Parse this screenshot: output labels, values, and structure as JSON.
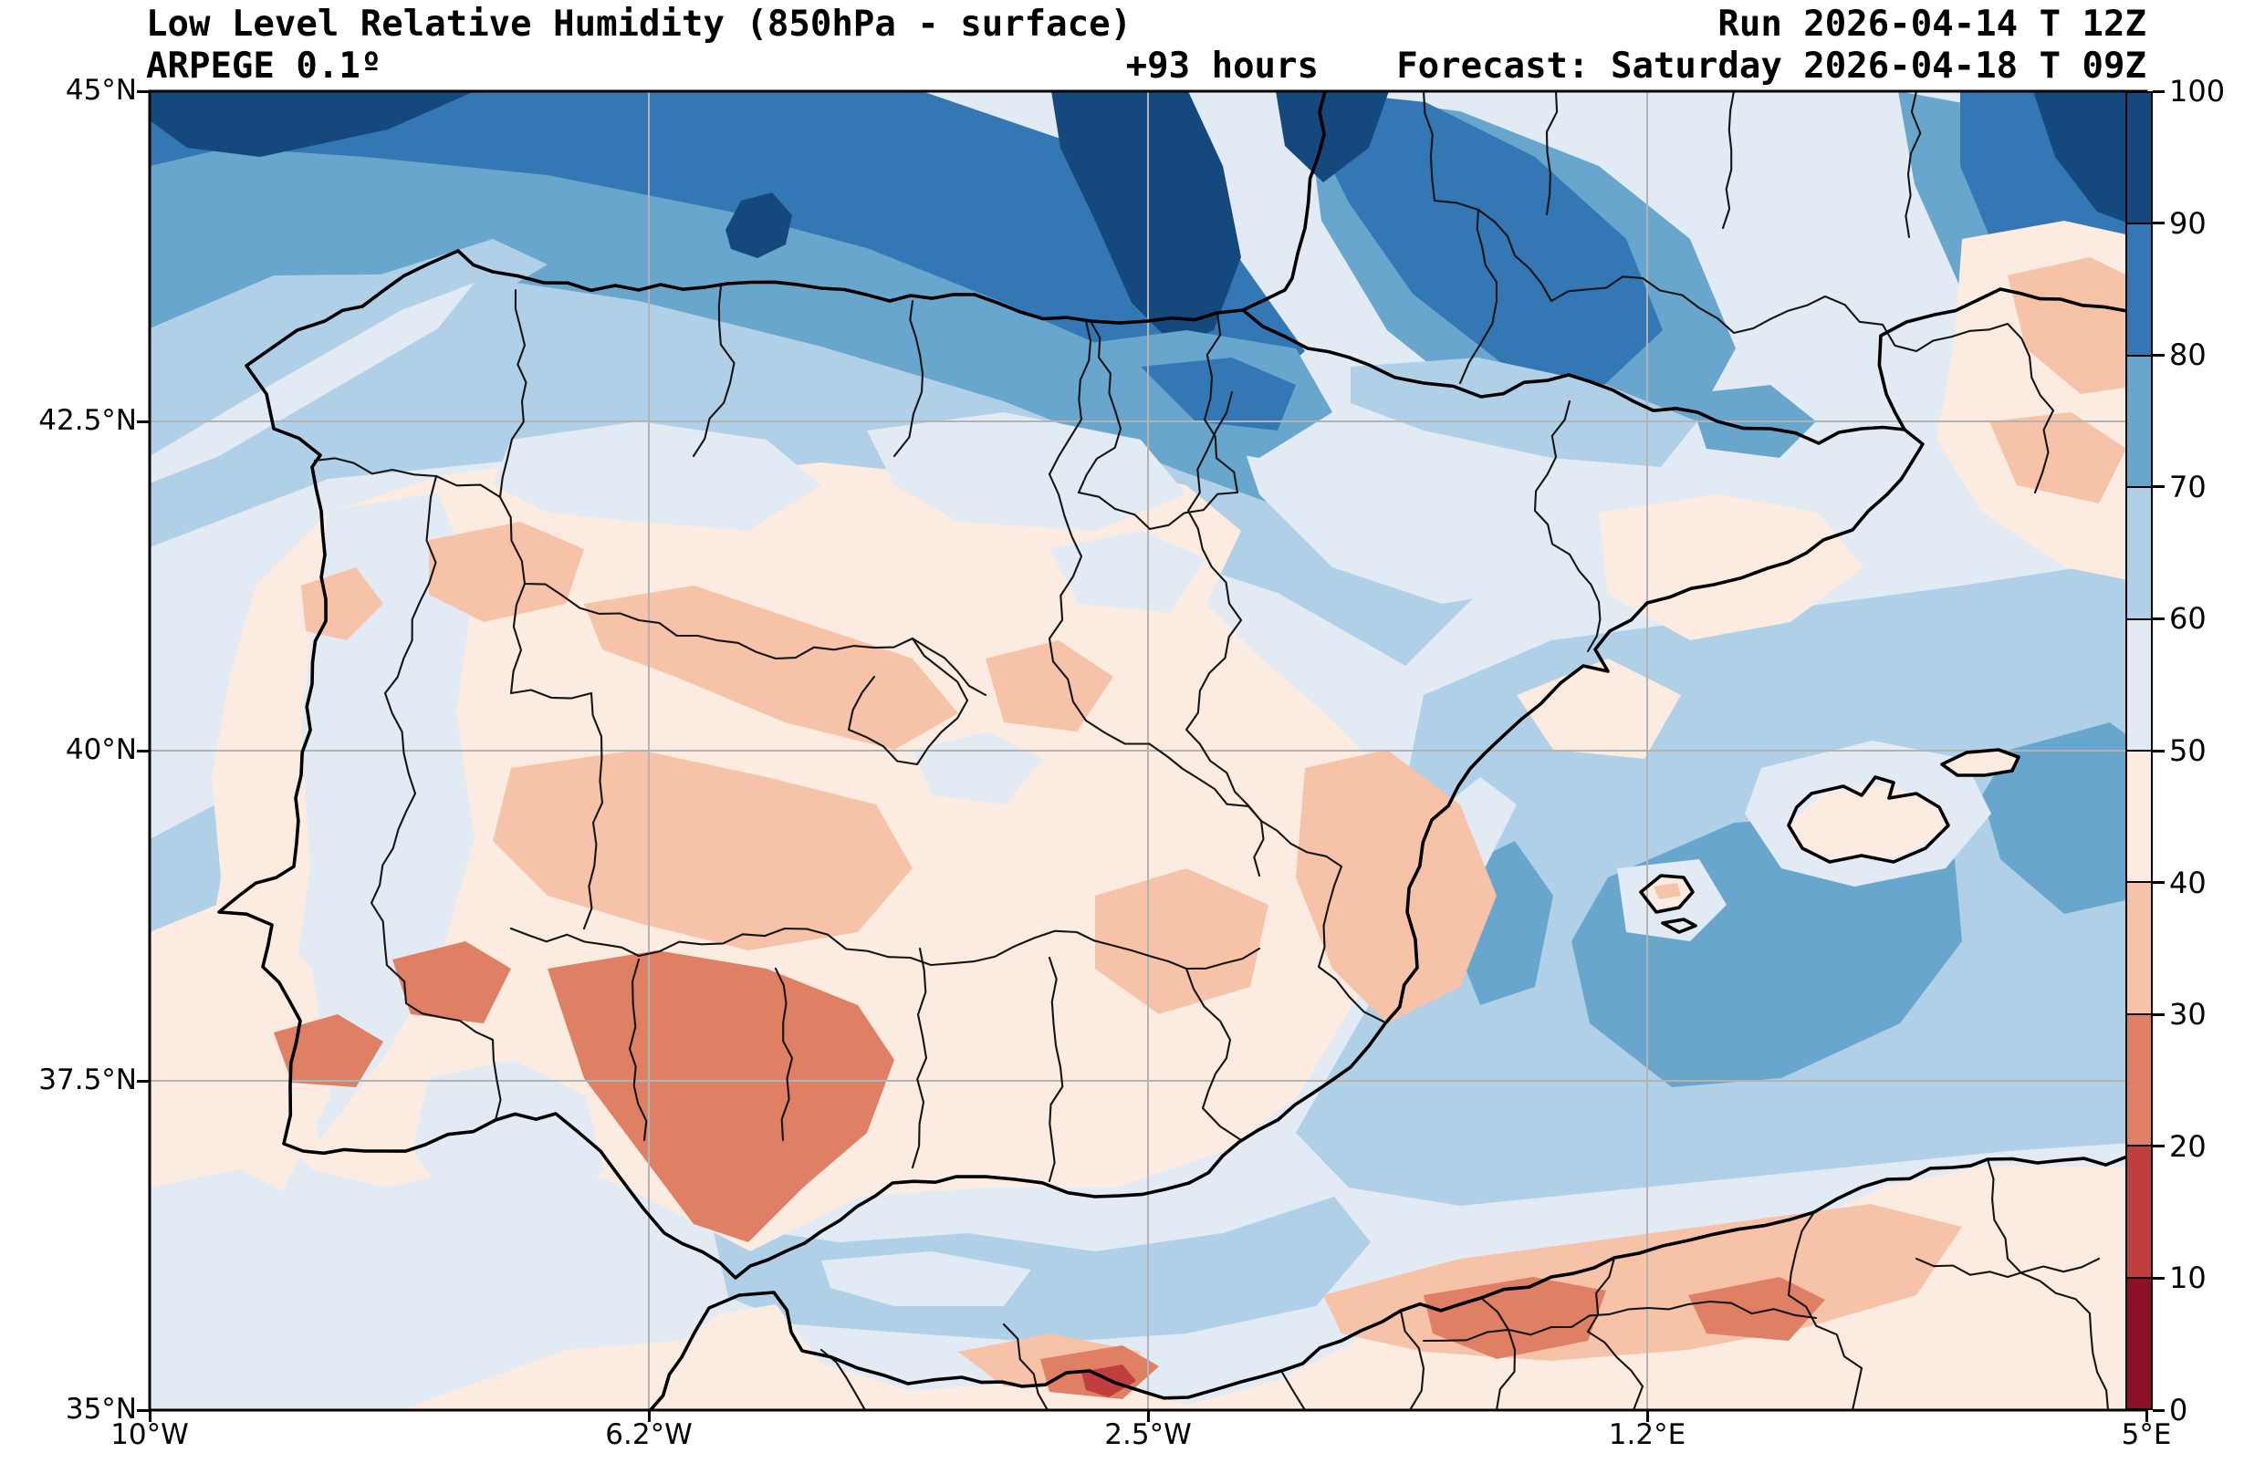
{
  "header": {
    "title": "Low Level Relative Humidity (850hPa - surface)",
    "model": "ARPEGE 0.1º",
    "lead_time": "+93 hours",
    "run": "Run 2026-04-14 T 12Z",
    "forecast": "Forecast: Saturday 2026-04-18 T 09Z"
  },
  "axes": {
    "x_ticks": [
      "10°W",
      "6.2°W",
      "2.5°W",
      "1.2°E",
      "5°E"
    ],
    "y_ticks": [
      "45°N",
      "42.5°N",
      "40°N",
      "37.5°N",
      "35°N"
    ]
  },
  "colorbar": {
    "tick_labels": [
      "100",
      "90",
      "80",
      "70",
      "60",
      "50",
      "40",
      "30",
      "20",
      "10",
      "0"
    ],
    "colors": [
      "#15497e",
      "#3377b4",
      "#68a6ce",
      "#b0d0e7",
      "#e2ebf3",
      "#fcebe1",
      "#f6c3a8",
      "#df7f63",
      "#c03e3e",
      "#8c1127"
    ],
    "grid_color": "#b3b3b3",
    "coast_color": "#000000"
  },
  "chart_data": {
    "type": "filled_contour_map",
    "title": "Low Level Relative Humidity (850hPa - surface)",
    "variable": "relative humidity (%)",
    "model": "ARPEGE 0.1º",
    "run": "2026-04-14 12Z",
    "valid": "Saturday 2026-04-18 09Z",
    "lead_hours": 93,
    "extent": {
      "lon_min": -10,
      "lon_max": 5,
      "lat_min": 35,
      "lat_max": 45
    },
    "x_tick_lons": [
      -10,
      -6.2,
      -2.5,
      1.2,
      5
    ],
    "y_tick_lats": [
      45,
      42.5,
      40,
      37.5,
      35
    ],
    "levels_pct": [
      0,
      10,
      20,
      30,
      40,
      50,
      60,
      70,
      80,
      90,
      100
    ],
    "palette_low_to_high": [
      "#8c1127",
      "#c03e3e",
      "#df7f63",
      "#f6c3a8",
      "#fcebe1",
      "#e2ebf3",
      "#b0d0e7",
      "#68a6ce",
      "#3377b4",
      "#15497e"
    ],
    "legend_position": "right",
    "gridlines": true,
    "regions": [
      {
        "area": "Bay of Biscay / offshore band along top",
        "rh_pct": "80-100"
      },
      {
        "area": "Dark maxima top-centre and top-right corner",
        "rh_pct": "90-100"
      },
      {
        "area": "Western France (Aquitaine)",
        "rh_pct": "70-90"
      },
      {
        "area": "Cantabrian / Basque coast of N Spain",
        "rh_pct": "60-90"
      },
      {
        "area": "NW Atlantic wedge off Galicia",
        "rh_pct": "60-70"
      },
      {
        "area": "Galicia and N Portugal interior",
        "rh_pct": "40-60"
      },
      {
        "area": "Central Iberian plateau",
        "rh_pct": "30-50"
      },
      {
        "area": "Guadalquivir valley / Andalusia",
        "rh_pct": "20-40"
      },
      {
        "area": "Ebro valley and Catalonia",
        "rh_pct": "40-60"
      },
      {
        "area": "SE Spain inland (Teruel-Murcia band)",
        "rh_pct": "30-40"
      },
      {
        "area": "Balearic Sea / W Mediterranean",
        "rh_pct": "60-80"
      },
      {
        "area": "Balearic Islands (land)",
        "rh_pct": "40-50"
      },
      {
        "area": "SE France (Languedoc-Provence)",
        "rh_pct": "30-50"
      },
      {
        "area": "Alboran Sea",
        "rh_pct": "50-70"
      },
      {
        "area": "North Africa interior (Morocco/Algeria)",
        "rh_pct": "10-40"
      },
      {
        "area": "Spots on Algerian/Moroccan coast",
        "rh_pct": "10-30"
      }
    ]
  }
}
